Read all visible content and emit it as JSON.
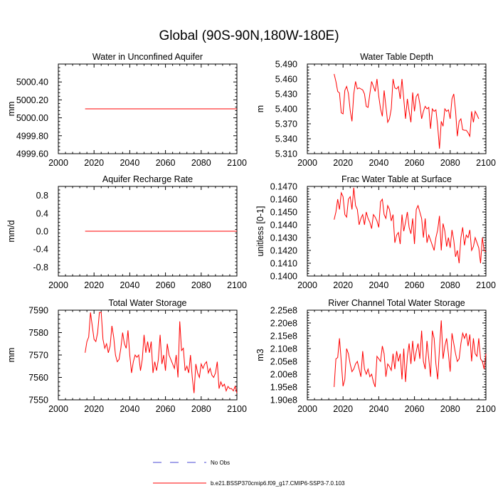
{
  "figure": {
    "title": "Global (90S-90N,180W-180E)"
  },
  "legend": {
    "entries": [
      {
        "label": "No Obs",
        "color": "#4b4bd6",
        "dash": "dashed"
      },
      {
        "label": "b.e21.BSSP370cmip6.f09_g17.CMIP6-SSP3-7.0.103",
        "color": "#ff0000",
        "dash": "solid"
      }
    ]
  },
  "chart_data": [
    {
      "id": "aquifer",
      "type": "line",
      "title": "Water in Unconfined Aquifer",
      "xlabel": "",
      "ylabel": "mm",
      "xlim": [
        2000,
        2100
      ],
      "ylim": [
        4999.6,
        5000.6
      ],
      "xticks": [
        2000,
        2020,
        2040,
        2060,
        2080,
        2100
      ],
      "yticks": [
        4999.6,
        4999.8,
        5000.0,
        5000.2,
        5000.4
      ],
      "ytick_labels": [
        "4999.60",
        "4999.80",
        "5000.00",
        "5000.20",
        "5000.40"
      ],
      "series": [
        {
          "name": "b.e21.BSSP370cmip6.f09_g17.CMIP6-SSP3-7.0.103",
          "color": "#ff0000",
          "x_start": 2015,
          "x_step": 1,
          "values": [
            5000.1,
            5000.1,
            5000.1,
            5000.1,
            5000.1,
            5000.1,
            5000.1,
            5000.1,
            5000.1,
            5000.1,
            5000.1,
            5000.1,
            5000.1,
            5000.1,
            5000.1,
            5000.1,
            5000.1,
            5000.1,
            5000.1,
            5000.1,
            5000.1,
            5000.1,
            5000.1,
            5000.1,
            5000.1,
            5000.1,
            5000.1,
            5000.1,
            5000.1,
            5000.1,
            5000.1,
            5000.1,
            5000.1,
            5000.1,
            5000.1,
            5000.1,
            5000.1,
            5000.1,
            5000.1,
            5000.1,
            5000.1,
            5000.1,
            5000.1,
            5000.1,
            5000.1,
            5000.1,
            5000.1,
            5000.1,
            5000.1,
            5000.1,
            5000.1,
            5000.1,
            5000.1,
            5000.1,
            5000.1,
            5000.1,
            5000.1,
            5000.1,
            5000.1,
            5000.1,
            5000.1,
            5000.1,
            5000.1,
            5000.1,
            5000.1,
            5000.1,
            5000.1,
            5000.1,
            5000.1,
            5000.1,
            5000.1,
            5000.1,
            5000.1,
            5000.1,
            5000.1,
            5000.1,
            5000.1,
            5000.1,
            5000.1,
            5000.1,
            5000.1,
            5000.1,
            5000.1,
            5000.1,
            5000.1,
            5000.1
          ]
        }
      ]
    },
    {
      "id": "wtd",
      "type": "line",
      "title": "Water Table Depth",
      "xlabel": "",
      "ylabel": "m",
      "xlim": [
        2000,
        2100
      ],
      "ylim": [
        5.31,
        5.49
      ],
      "xticks": [
        2000,
        2020,
        2040,
        2060,
        2080,
        2100
      ],
      "yticks": [
        5.31,
        5.34,
        5.37,
        5.4,
        5.43,
        5.46,
        5.49
      ],
      "ytick_labels": [
        "5.310",
        "5.340",
        "5.370",
        "5.400",
        "5.430",
        "5.460",
        "5.490"
      ],
      "series": [
        {
          "name": "b.e21.BSSP370cmip6.f09_g17.CMIP6-SSP3-7.0.103",
          "color": "#ff0000",
          "x_start": 2015,
          "x_step": 1,
          "values": [
            5.47,
            5.455,
            5.435,
            5.432,
            5.392,
            5.39,
            5.437,
            5.445,
            5.431,
            5.397,
            5.375,
            5.43,
            5.455,
            5.44,
            5.442,
            5.44,
            5.438,
            5.43,
            5.405,
            5.403,
            5.43,
            5.455,
            5.445,
            5.435,
            5.46,
            5.425,
            5.4,
            5.385,
            5.437,
            5.405,
            5.373,
            5.38,
            5.4,
            5.46,
            5.442,
            5.44,
            5.445,
            5.42,
            5.46,
            5.42,
            5.38,
            5.42,
            5.395,
            5.373,
            5.433,
            5.395,
            5.425,
            5.43,
            5.41,
            5.38,
            5.395,
            5.405,
            5.4,
            5.403,
            5.36,
            5.4,
            5.395,
            5.398,
            5.365,
            5.32,
            5.375,
            5.365,
            5.4,
            5.395,
            5.398,
            5.38,
            5.42,
            5.43,
            5.396,
            5.345,
            5.375,
            5.38,
            5.358,
            5.357,
            5.357,
            5.352,
            5.345,
            5.395,
            5.373,
            5.395,
            5.388,
            5.38
          ]
        }
      ]
    },
    {
      "id": "recharge",
      "type": "line",
      "title": "Aquifer Recharge Rate",
      "xlabel": "",
      "ylabel": "mm/d",
      "xlim": [
        2000,
        2100
      ],
      "ylim": [
        -1.0,
        1.0
      ],
      "xticks": [
        2000,
        2020,
        2040,
        2060,
        2080,
        2100
      ],
      "yticks": [
        -0.8,
        -0.4,
        0.0,
        0.4,
        0.8
      ],
      "ytick_labels": [
        "-0.8",
        "-0.4",
        "0.0",
        "0.4",
        "0.8"
      ],
      "series": [
        {
          "name": "b.e21.BSSP370cmip6.f09_g17.CMIP6-SSP3-7.0.103",
          "color": "#ff0000",
          "x_start": 2015,
          "x_step": 1,
          "values": [
            0,
            0,
            0,
            0,
            0,
            0,
            0,
            0,
            0,
            0,
            0,
            0,
            0,
            0,
            0,
            0,
            0,
            0,
            0,
            0,
            0,
            0,
            0,
            0,
            0,
            0,
            0,
            0,
            0,
            0,
            0,
            0,
            0,
            0,
            0,
            0,
            0,
            0,
            0,
            0,
            0,
            0,
            0,
            0,
            0,
            0,
            0,
            0,
            0,
            0,
            0,
            0,
            0,
            0,
            0,
            0,
            0,
            0,
            0,
            0,
            0,
            0,
            0,
            0,
            0,
            0,
            0,
            0,
            0,
            0,
            0,
            0,
            0,
            0,
            0,
            0,
            0,
            0,
            0,
            0,
            0,
            0,
            0,
            0,
            0,
            0
          ]
        }
      ]
    },
    {
      "id": "frac",
      "type": "line",
      "title": "Frac Water Table at Surface",
      "xlabel": "",
      "ylabel": "unitless [0-1]",
      "xlim": [
        2000,
        2100
      ],
      "ylim": [
        0.14,
        0.147
      ],
      "xticks": [
        2000,
        2020,
        2040,
        2060,
        2080,
        2100
      ],
      "yticks": [
        0.14,
        0.141,
        0.142,
        0.143,
        0.144,
        0.145,
        0.146,
        0.147
      ],
      "ytick_labels": [
        "0.1400",
        "0.1410",
        "0.1420",
        "0.1430",
        "0.1440",
        "0.1450",
        "0.1460",
        "0.1470"
      ],
      "series": [
        {
          "name": "b.e21.BSSP370cmip6.f09_g17.CMIP6-SSP3-7.0.103",
          "color": "#ff0000",
          "x_start": 2015,
          "x_step": 1,
          "values": [
            0.1444,
            0.145,
            0.146,
            0.1452,
            0.1465,
            0.1462,
            0.1448,
            0.1446,
            0.146,
            0.1462,
            0.1452,
            0.1469,
            0.1455,
            0.1452,
            0.144,
            0.1445,
            0.1448,
            0.144,
            0.145,
            0.1445,
            0.1442,
            0.1437,
            0.1448,
            0.1446,
            0.1443,
            0.1438,
            0.1458,
            0.146,
            0.1448,
            0.1445,
            0.1455,
            0.1452,
            0.1443,
            0.1448,
            0.1426,
            0.1432,
            0.1434,
            0.1425,
            0.1448,
            0.1435,
            0.1442,
            0.145,
            0.1438,
            0.1433,
            0.1445,
            0.1425,
            0.1452,
            0.1455,
            0.145,
            0.1445,
            0.143,
            0.1445,
            0.1426,
            0.1432,
            0.1428,
            0.1424,
            0.142,
            0.143,
            0.1436,
            0.1447,
            0.142,
            0.1441,
            0.1435,
            0.1423,
            0.143,
            0.1422,
            0.1436,
            0.1428,
            0.1415,
            0.142,
            0.141,
            0.143,
            0.1438,
            0.1424,
            0.1432,
            0.143,
            0.1436,
            0.142,
            0.1423,
            0.143,
            0.1426,
            0.1422,
            0.141,
            0.143,
            0.142,
            0.1419
          ]
        }
      ]
    },
    {
      "id": "storage",
      "type": "line",
      "title": "Total Water Storage",
      "xlabel": "",
      "ylabel": "mm",
      "xlim": [
        2000,
        2100
      ],
      "ylim": [
        7550,
        7590
      ],
      "xticks": [
        2000,
        2020,
        2040,
        2060,
        2080,
        2100
      ],
      "yticks": [
        7550,
        7560,
        7570,
        7580,
        7590
      ],
      "ytick_labels": [
        "7550",
        "7560",
        "7570",
        "7580",
        "7590"
      ],
      "series": [
        {
          "name": "b.e21.BSSP370cmip6.f09_g17.CMIP6-SSP3-7.0.103",
          "color": "#ff0000",
          "x_start": 2015,
          "x_step": 1,
          "values": [
            7571,
            7576,
            7578,
            7589,
            7583,
            7577,
            7576,
            7580,
            7589,
            7589,
            7577,
            7573,
            7575,
            7571,
            7574,
            7583,
            7578,
            7570,
            7567,
            7568,
            7573,
            7580,
            7575,
            7573,
            7581,
            7570,
            7562,
            7567,
            7570,
            7569,
            7570,
            7563,
            7568,
            7579,
            7571,
            7576,
            7571,
            7576,
            7562,
            7567,
            7563,
            7568,
            7579,
            7566,
            7570,
            7563,
            7575,
            7570,
            7568,
            7566,
            7564,
            7570,
            7560,
            7585,
            7572,
            7573,
            7563,
            7565,
            7562,
            7570,
            7560,
            7553,
            7566,
            7562,
            7560,
            7566,
            7564,
            7566,
            7567,
            7562,
            7564,
            7561,
            7560,
            7562,
            7567,
            7555,
            7558,
            7556,
            7557,
            7554,
            7556,
            7555,
            7555,
            7554,
            7556,
            7553
          ]
        }
      ]
    },
    {
      "id": "river",
      "type": "line",
      "title": "River Channel Total Water Storage",
      "xlabel": "",
      "ylabel": "m3",
      "xlim": [
        2000,
        2100
      ],
      "ylim": [
        190000000.0,
        225000000.0
      ],
      "xticks": [
        2000,
        2020,
        2040,
        2060,
        2080,
        2100
      ],
      "yticks": [
        190000000.0,
        195000000.0,
        200000000.0,
        205000000.0,
        210000000.0,
        215000000.0,
        220000000.0,
        225000000.0
      ],
      "ytick_labels": [
        "1.90e8",
        "1.95e8",
        "2.00e8",
        "2.05e8",
        "2.10e8",
        "2.15e8",
        "2.20e8",
        "2.25e8"
      ],
      "series": [
        {
          "name": "b.e21.BSSP370cmip6.f09_g17.CMIP6-SSP3-7.0.103",
          "color": "#ff0000",
          "x_start": 2015,
          "x_step": 1,
          "values": [
            195000000.0,
            206000000.0,
            206500000.0,
            214000000.0,
            205000000.0,
            195300000.0,
            198000000.0,
            210000000.0,
            208000000.0,
            204000000.0,
            201000000.0,
            202000000.0,
            204000000.0,
            205000000.0,
            202000000.0,
            199000000.0,
            209000000.0,
            202000000.0,
            200000000.0,
            202000000.0,
            199000000.0,
            200000000.0,
            197000000.0,
            195000000.0,
            207000000.0,
            206000000.0,
            205000000.0,
            211000000.0,
            208000000.0,
            199000000.0,
            204000000.0,
            203000000.0,
            201500000.0,
            208000000.0,
            202000000.0,
            209000000.0,
            205000000.0,
            208000000.0,
            198000000.0,
            210000000.0,
            197000000.0,
            207000000.0,
            212000000.0,
            204000000.0,
            213000000.0,
            205000000.0,
            209000000.0,
            212000000.0,
            206000000.0,
            217000000.0,
            205000000.0,
            202000000.0,
            213000000.0,
            206000000.0,
            199000000.0,
            217000000.0,
            214000000.0,
            204000000.0,
            198000000.0,
            210000000.0,
            221000000.0,
            206000000.0,
            211000000.0,
            214000000.0,
            208000000.0,
            201000000.0,
            216000000.0,
            212000000.0,
            208000000.0,
            205000000.0,
            206000000.0,
            212000000.0,
            216000000.0,
            214000000.0,
            216000000.0,
            211000000.0,
            215500000.0,
            205000000.0,
            214000000.0,
            208000000.0,
            207000000.0,
            214000000.0,
            206000000.0,
            205000000.0,
            202000000.0,
            208000000.0
          ]
        }
      ]
    }
  ]
}
